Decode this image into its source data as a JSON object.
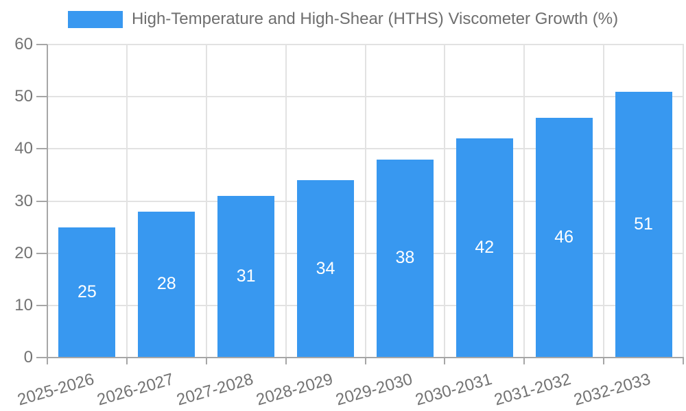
{
  "legend": {
    "label": "High-Temperature and High-Shear (HTHS) Viscometer Growth (%)"
  },
  "chart_data": {
    "type": "bar",
    "title": "High-Temperature and High-Shear (HTHS) Viscometer Growth (%)",
    "categories": [
      "2025-2026",
      "2026-2027",
      "2027-2028",
      "2028-2029",
      "2029-2030",
      "2030-2031",
      "2031-2032",
      "2032-2033"
    ],
    "values": [
      25,
      28,
      31,
      34,
      38,
      42,
      46,
      51
    ],
    "xlabel": "",
    "ylabel": "",
    "ylim": [
      0,
      60
    ],
    "yticks": [
      0,
      10,
      20,
      30,
      40,
      50,
      60
    ],
    "grid": true,
    "legend_position": "top",
    "bar_color": "#3898F0",
    "value_label_color": "#FFFFFF"
  },
  "colors": {
    "bar": "#3898F0",
    "grid": "#E2E2E2",
    "axis": "#A6A6A6",
    "text": "#737373",
    "background": "#FFFFFF"
  }
}
